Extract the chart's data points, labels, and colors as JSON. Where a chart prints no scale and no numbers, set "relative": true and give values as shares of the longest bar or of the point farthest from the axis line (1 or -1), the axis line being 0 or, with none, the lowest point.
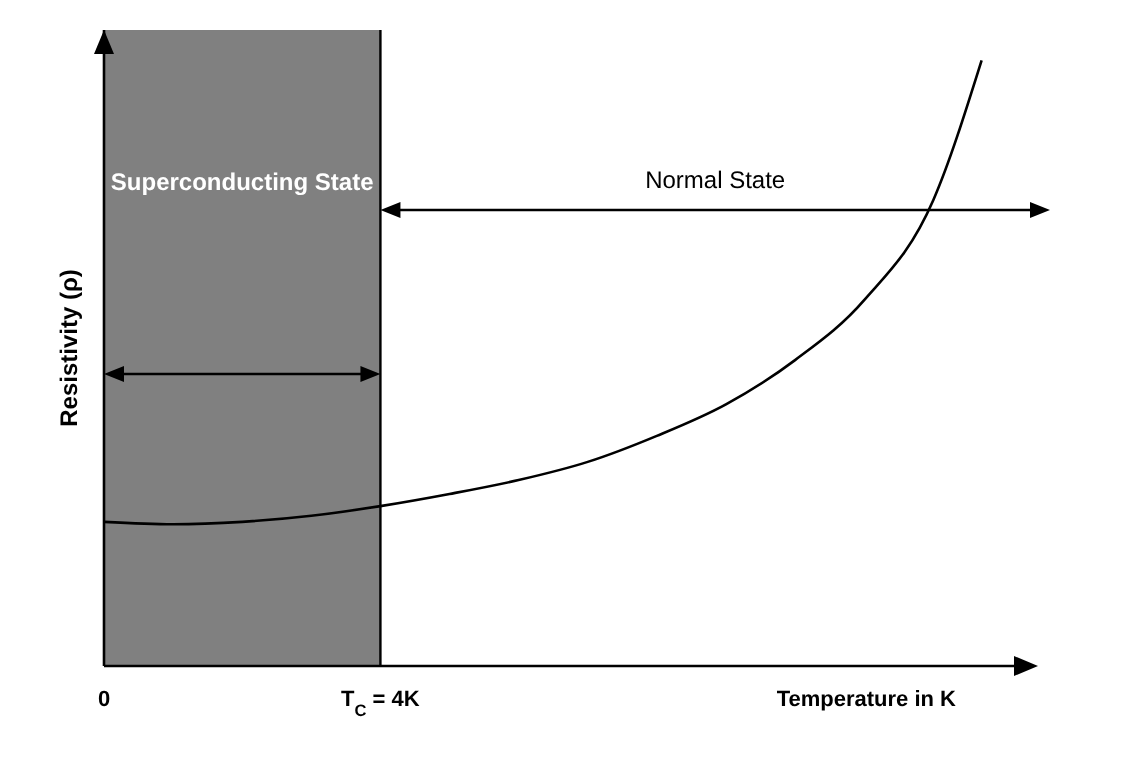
{
  "chart_data": {
    "type": "line",
    "relative": true,
    "xlabel": "Temperature in K",
    "ylabel": "Resistivity (ρ)",
    "x": [
      0,
      1,
      2,
      3,
      4,
      5,
      6,
      7,
      8,
      9,
      10,
      11,
      12,
      12.7
    ],
    "series": [
      {
        "color": "#000000",
        "values": [
          0.238,
          0.234,
          0.238,
          0.248,
          0.264,
          0.284,
          0.307,
          0.337,
          0.38,
          0.432,
          0.505,
          0.604,
          0.769,
          1
        ]
      }
    ],
    "xlim": [
      0,
      13.4
    ],
    "xticks": [
      0,
      {
        "value": 4,
        "label": "T$_{C}$ = 4K"
      }
    ],
    "bands": [
      {
        "axis": "x",
        "from": 0,
        "to": 4,
        "label": "Superconducting State",
        "color": "#808080"
      }
    ],
    "ref_lines": [
      {
        "axis": "x",
        "value": 4
      }
    ],
    "annotations": [
      "Normal State"
    ],
    "marker": "none"
  }
}
